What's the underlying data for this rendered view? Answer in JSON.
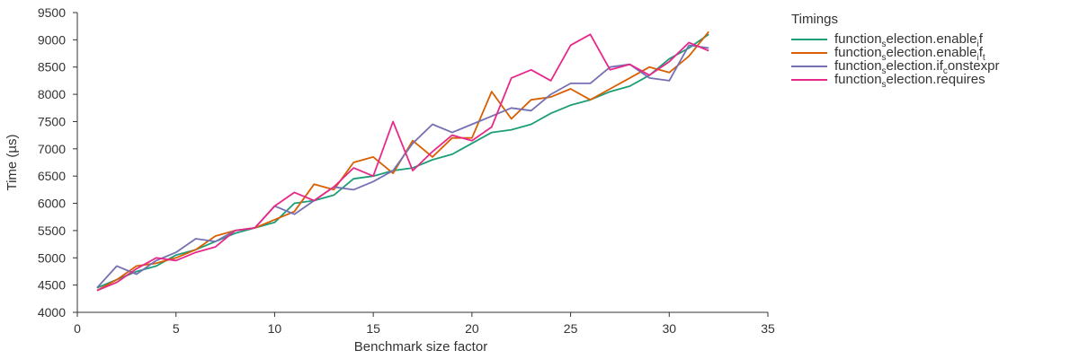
{
  "chart_data": {
    "type": "line",
    "xlabel": "Benchmark size factor",
    "ylabel": "Time (µs)",
    "xlim": [
      0,
      35
    ],
    "ylim": [
      4000,
      9500
    ],
    "xticks": [
      0,
      5,
      10,
      15,
      20,
      25,
      30,
      35
    ],
    "yticks": [
      4000,
      4500,
      5000,
      5500,
      6000,
      6500,
      7000,
      7500,
      8000,
      8500,
      9000,
      9500
    ],
    "grid": false,
    "legend_title": "Timings",
    "legend_position": "right",
    "x": [
      1,
      2,
      3,
      4,
      5,
      6,
      7,
      8,
      9,
      10,
      11,
      12,
      13,
      14,
      15,
      16,
      17,
      18,
      19,
      20,
      21,
      22,
      23,
      24,
      25,
      26,
      27,
      28,
      29,
      30,
      31,
      32
    ],
    "series": [
      {
        "name": "function_selection.enable_if",
        "label_parts": [
          [
            "function",
            false
          ],
          [
            "s",
            true
          ],
          [
            "election.enable",
            false
          ],
          [
            "i",
            true
          ],
          [
            "f",
            false
          ]
        ],
        "color": "#1b9e77",
        "values": [
          4450,
          4600,
          4750,
          4850,
          5050,
          5150,
          5300,
          5450,
          5550,
          5650,
          6000,
          6050,
          6150,
          6450,
          6500,
          6600,
          6650,
          6800,
          6900,
          7100,
          7300,
          7350,
          7450,
          7650,
          7800,
          7900,
          8050,
          8150,
          8350,
          8650,
          8850,
          9100
        ]
      },
      {
        "name": "function_selection.enable_if_t",
        "label_parts": [
          [
            "function",
            false
          ],
          [
            "s",
            true
          ],
          [
            "election.enable",
            false
          ],
          [
            "i",
            true
          ],
          [
            "f",
            false
          ],
          [
            "t",
            true
          ]
        ],
        "color": "#d95f02",
        "values": [
          4400,
          4600,
          4850,
          4900,
          5000,
          5150,
          5400,
          5500,
          5550,
          5700,
          5850,
          6350,
          6250,
          6750,
          6850,
          6550,
          7150,
          6850,
          7200,
          7200,
          8050,
          7550,
          7900,
          7950,
          8100,
          7900,
          8100,
          8300,
          8500,
          8400,
          8700,
          9150
        ]
      },
      {
        "name": "function_selection.if_constexpr",
        "label_parts": [
          [
            "function",
            false
          ],
          [
            "s",
            true
          ],
          [
            "election.if",
            false
          ],
          [
            "c",
            true
          ],
          [
            "onstexpr",
            false
          ]
        ],
        "color": "#7570b3",
        "values": [
          4450,
          4850,
          4700,
          4950,
          5100,
          5350,
          5300,
          5500,
          5550,
          5950,
          5800,
          6050,
          6300,
          6250,
          6400,
          6600,
          7100,
          7450,
          7300,
          7450,
          7600,
          7750,
          7700,
          8000,
          8200,
          8200,
          8500,
          8550,
          8300,
          8250,
          8900,
          8850
        ]
      },
      {
        "name": "function_selection.requires",
        "label_parts": [
          [
            "function",
            false
          ],
          [
            "s",
            true
          ],
          [
            "election.requires",
            false
          ]
        ],
        "color": "#e7298a",
        "values": [
          4400,
          4550,
          4800,
          5000,
          4950,
          5100,
          5200,
          5500,
          5550,
          5950,
          6200,
          6050,
          6300,
          6650,
          6500,
          7500,
          6600,
          6950,
          7250,
          7150,
          7400,
          8300,
          8450,
          8250,
          8900,
          9100,
          8450,
          8550,
          8350,
          8600,
          8950,
          8800
        ]
      }
    ]
  }
}
